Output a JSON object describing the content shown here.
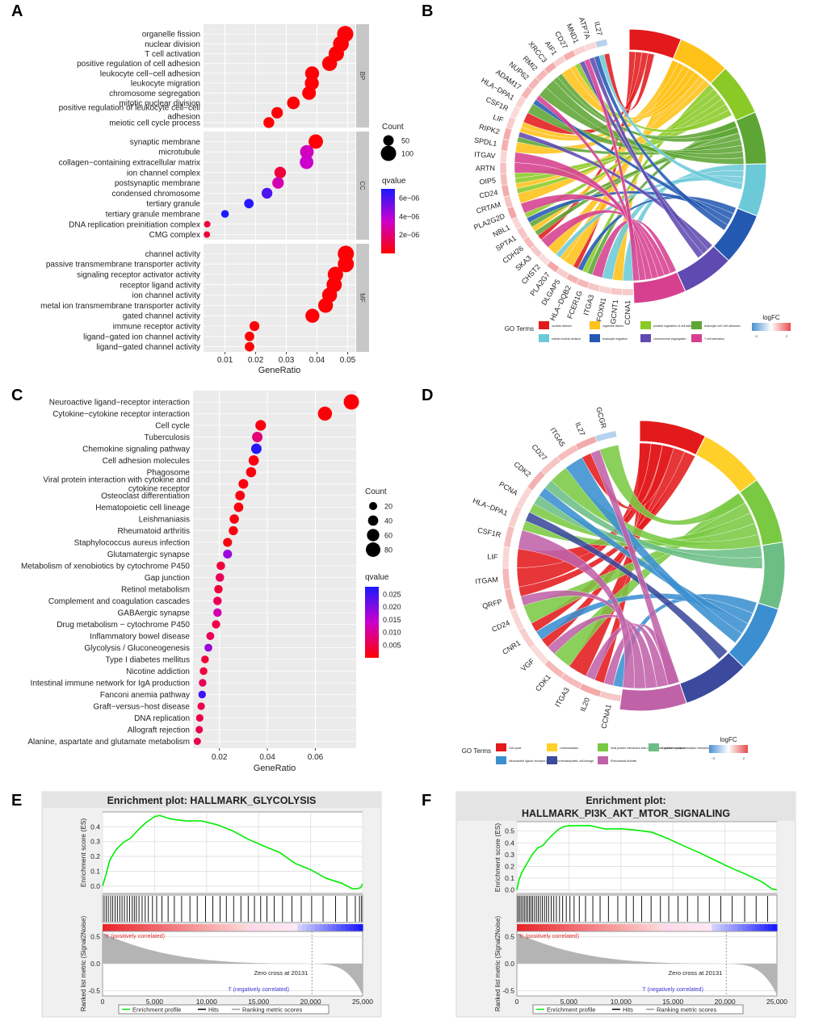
{
  "figure": {
    "panel_labels": [
      "A",
      "B",
      "C",
      "D",
      "E",
      "F"
    ],
    "colors": {
      "dot_low_q": "#ff0000",
      "dot_high_q": "#1a1aff",
      "panel_bg": "#ebebeb",
      "strip_bg": "#c7c7c7",
      "gsea_curve": "#00ee00",
      "gsea_bar": "#b4b4b4",
      "logfc_low": "#4b8fd1",
      "logfc_high": "#e64b4b"
    }
  },
  "chart_data": [
    {
      "id": "A",
      "type": "scatter",
      "subtype": "dotplot",
      "xlabel": "GeneRatio",
      "xlim": [
        0.003,
        0.0525
      ],
      "xticks": [
        0.01,
        0.02,
        0.03,
        0.04,
        0.05
      ],
      "xticklabels": [
        "0.01",
        "0.02",
        "0.03",
        "0.04",
        "0.05"
      ],
      "size_legend": {
        "title": "Count",
        "values": [
          50,
          100
        ]
      },
      "color_legend": {
        "title": "qvalue",
        "ticks": [
          2e-06,
          4e-06,
          6e-06
        ],
        "ticklabels": [
          "2e−06",
          "4e−06",
          "6e−06"
        ],
        "range": [
          0,
          7e-06
        ]
      },
      "facets": [
        {
          "name": "BP",
          "terms": [
            {
              "label": "organelle fission",
              "gr": 0.0492,
              "count": 108,
              "q": 1e-07
            },
            {
              "label": "nuclear division",
              "gr": 0.0478,
              "count": 104,
              "q": 1e-07
            },
            {
              "label": "T cell activation",
              "gr": 0.0463,
              "count": 100,
              "q": 1e-07
            },
            {
              "label": "positive regulation of cell adhesion",
              "gr": 0.0441,
              "count": 96,
              "q": 1e-07
            },
            {
              "label": "leukocyte cell−cell adhesion",
              "gr": 0.0384,
              "count": 86,
              "q": 1e-07
            },
            {
              "label": "leukocyte migration",
              "gr": 0.0383,
              "count": 86,
              "q": 1e-07
            },
            {
              "label": "chromosome segregation",
              "gr": 0.0374,
              "count": 83,
              "q": 1e-07
            },
            {
              "label": "mitotic nuclear division",
              "gr": 0.0323,
              "count": 72,
              "q": 1e-07
            },
            {
              "label": "positive regulation of leukocyte cell−cell adhesion",
              "gr": 0.027,
              "count": 60,
              "q": 1e-07
            },
            {
              "label": "meiotic cell cycle process",
              "gr": 0.0243,
              "count": 54,
              "q": 1e-07
            }
          ]
        },
        {
          "name": "CC",
          "terms": [
            {
              "label": "synaptic membrane",
              "gr": 0.0396,
              "count": 90,
              "q": 1e-07
            },
            {
              "label": "microtubule",
              "gr": 0.0367,
              "count": 83,
              "q": 3.2e-06
            },
            {
              "label": "collagen−containing extracellular matrix",
              "gr": 0.0366,
              "count": 82,
              "q": 3.5e-06
            },
            {
              "label": "ion channel complex",
              "gr": 0.028,
              "count": 62,
              "q": 1e-06
            },
            {
              "label": "postsynaptic membrane",
              "gr": 0.0273,
              "count": 61,
              "q": 3e-06
            },
            {
              "label": "condensed chromosome",
              "gr": 0.0237,
              "count": 53,
              "q": 6e-06
            },
            {
              "label": "tertiary granule",
              "gr": 0.0178,
              "count": 40,
              "q": 6.8e-06
            },
            {
              "label": "tertiary granule membrane",
              "gr": 0.01,
              "count": 22,
              "q": 7e-06
            },
            {
              "label": "DNA replication preinitiation complex",
              "gr": 0.0042,
              "count": 9,
              "q": 1e-06
            },
            {
              "label": "CMG complex",
              "gr": 0.0041,
              "count": 9,
              "q": 1e-06
            }
          ]
        },
        {
          "name": "MF",
          "terms": [
            {
              "label": "channel activity",
              "gr": 0.0494,
              "count": 108,
              "q": 1e-07
            },
            {
              "label": "passive transmembrane transporter activity",
              "gr": 0.0494,
              "count": 108,
              "q": 1e-07
            },
            {
              "label": "signaling receptor activator activity",
              "gr": 0.046,
              "count": 100,
              "q": 1e-07
            },
            {
              "label": "receptor ligand activity",
              "gr": 0.0456,
              "count": 99,
              "q": 1e-07
            },
            {
              "label": "ion channel activity",
              "gr": 0.0441,
              "count": 96,
              "q": 1e-07
            },
            {
              "label": "metal ion transmembrane transporter activity",
              "gr": 0.0428,
              "count": 94,
              "q": 1e-07
            },
            {
              "label": "gated channel activity",
              "gr": 0.0385,
              "count": 86,
              "q": 1e-07
            },
            {
              "label": "immune receptor activity",
              "gr": 0.0196,
              "count": 44,
              "q": 1e-07
            },
            {
              "label": "ligand−gated ion channel activity",
              "gr": 0.018,
              "count": 40,
              "q": 1e-07
            },
            {
              "label": "ligand−gated channel activity",
              "gr": 0.018,
              "count": 40,
              "q": 1e-07
            }
          ]
        }
      ]
    },
    {
      "id": "B",
      "type": "chord",
      "genes": [
        "CCNA1",
        "GCNT1",
        "FOXN1",
        "ITGA3",
        "FCER1G",
        "HLA−DQB2",
        "DLGAP5",
        "PLA2G7",
        "CHST2",
        "SKA3",
        "CDH26",
        "SPTA1",
        "NBL1",
        "PLA2G2D",
        "CRTAM",
        "CD24",
        "OIP5",
        "ARTN",
        "ITGAV",
        "SPDL1",
        "RIPK2",
        "LIF",
        "CSF1R",
        "HLA−DPA1",
        "ADAM17",
        "NUP62",
        "RMI2",
        "XRCC3",
        "AIF1",
        "CD27",
        "MND1",
        "ATP7A",
        "IL27"
      ],
      "terms": [
        {
          "name": "nuclear division",
          "color": "#e31a1c"
        },
        {
          "name": "organelle fission",
          "color": "#ffc219"
        },
        {
          "name": "positive regulation of cell adhesion",
          "color": "#8ac926"
        },
        {
          "name": "leukocyte cell−cell adhesion",
          "color": "#5da534"
        },
        {
          "name": "mitotic nuclear division",
          "color": "#6ccad8"
        },
        {
          "name": "leukocyte migration",
          "color": "#2459b2"
        },
        {
          "name": "chromosome segregation",
          "color": "#5e4ab0"
        },
        {
          "name": "T cell activation",
          "color": "#d6408f"
        }
      ],
      "legend_title": "GO Terms",
      "scale_title": "logFC",
      "scale_ticks": [
        "−2",
        "2"
      ]
    },
    {
      "id": "C",
      "type": "scatter",
      "subtype": "dotplot",
      "xlabel": "GeneRatio",
      "xlim": [
        0.009,
        0.077
      ],
      "xticks": [
        0.02,
        0.04,
        0.06
      ],
      "xticklabels": [
        "0.02",
        "0.04",
        "0.06"
      ],
      "size_legend": {
        "title": "Count",
        "values": [
          20,
          40,
          60,
          80
        ]
      },
      "color_legend": {
        "title": "qvalue",
        "ticks": [
          0.005,
          0.01,
          0.015,
          0.02,
          0.025
        ],
        "ticklabels": [
          "0.005",
          "0.010",
          "0.015",
          "0.020",
          "0.025"
        ],
        "range": [
          0,
          0.028
        ]
      },
      "terms": [
        {
          "label": "Neuroactive ligand−receptor interaction",
          "gr": 0.075,
          "count": 88,
          "q": 0.0005
        },
        {
          "label": "Cytokine−cytokine receptor interaction",
          "gr": 0.064,
          "count": 76,
          "q": 0.0005
        },
        {
          "label": "Cell cycle",
          "gr": 0.0372,
          "count": 44,
          "q": 0.001
        },
        {
          "label": "Tuberculosis",
          "gr": 0.0358,
          "count": 42,
          "q": 0.008
        },
        {
          "label": "Chemokine signaling pathway",
          "gr": 0.0354,
          "count": 42,
          "q": 0.027
        },
        {
          "label": "Cell adhesion molecules",
          "gr": 0.0343,
          "count": 40,
          "q": 0.001
        },
        {
          "label": "Phagosome",
          "gr": 0.0332,
          "count": 39,
          "q": 0.001
        },
        {
          "label": "Viral protein interaction with cytokine and cytokine receptor",
          "gr": 0.03,
          "count": 35,
          "q": 0.001
        },
        {
          "label": "Osteoclast differentiation",
          "gr": 0.0286,
          "count": 34,
          "q": 0.001
        },
        {
          "label": "Hematopoietic cell lineage",
          "gr": 0.028,
          "count": 33,
          "q": 0.001
        },
        {
          "label": "Leishmaniasis",
          "gr": 0.0262,
          "count": 31,
          "q": 0.001
        },
        {
          "label": "Rheumatoid arthritis",
          "gr": 0.0258,
          "count": 30,
          "q": 0.001
        },
        {
          "label": "Staphylococcus aureus infection",
          "gr": 0.0234,
          "count": 28,
          "q": 0.001
        },
        {
          "label": "Glutamatergic synapse",
          "gr": 0.0234,
          "count": 28,
          "q": 0.018
        },
        {
          "label": "Metabolism of xenobiotics by cytochrome P450",
          "gr": 0.0206,
          "count": 24,
          "q": 0.004
        },
        {
          "label": "Gap junction",
          "gr": 0.0202,
          "count": 24,
          "q": 0.006
        },
        {
          "label": "Retinol metabolism",
          "gr": 0.0196,
          "count": 23,
          "q": 0.004
        },
        {
          "label": "Complement and coagulation cascades",
          "gr": 0.0192,
          "count": 23,
          "q": 0.006
        },
        {
          "label": "GABAergic synapse",
          "gr": 0.0192,
          "count": 23,
          "q": 0.012
        },
        {
          "label": "Drug metabolism − cytochrome P450",
          "gr": 0.0186,
          "count": 22,
          "q": 0.005
        },
        {
          "label": "Inflammatory bowel disease",
          "gr": 0.0162,
          "count": 19,
          "q": 0.006
        },
        {
          "label": "Glycolysis / Gluconeogenesis",
          "gr": 0.0154,
          "count": 18,
          "q": 0.018
        },
        {
          "label": "Type I diabetes mellitus",
          "gr": 0.014,
          "count": 16,
          "q": 0.004
        },
        {
          "label": "Nicotine addiction",
          "gr": 0.0134,
          "count": 16,
          "q": 0.004
        },
        {
          "label": "Intestinal immune network for IgA production",
          "gr": 0.013,
          "count": 15,
          "q": 0.006
        },
        {
          "label": "Fanconi anemia pathway",
          "gr": 0.0128,
          "count": 15,
          "q": 0.025
        },
        {
          "label": "Graft−versus−host disease",
          "gr": 0.0124,
          "count": 14,
          "q": 0.005
        },
        {
          "label": "DNA replication",
          "gr": 0.0118,
          "count": 14,
          "q": 0.005
        },
        {
          "label": "Allograft rejection",
          "gr": 0.0116,
          "count": 13,
          "q": 0.005
        },
        {
          "label": "Alanine, aspartate and glutamate metabolism",
          "gr": 0.0108,
          "count": 12,
          "q": 0.005
        }
      ]
    },
    {
      "id": "D",
      "type": "chord",
      "genes": [
        "CCNA1",
        "IL20",
        "ITGA3",
        "CDK1",
        "VGF",
        "CNR1",
        "CD24",
        "QRFP",
        "ITGAM",
        "LIF",
        "CSF1R",
        "HLA−DPA1",
        "PCNA",
        "CDK2",
        "CD27",
        "ITGA5",
        "IL27",
        "GCGR"
      ],
      "terms": [
        {
          "name": "Cell cycle",
          "color": "#e31a1c"
        },
        {
          "name": "Leishmaniasis",
          "color": "#ffd02a"
        },
        {
          "name": "Viral protein interaction with cytokine and cytokine receptor",
          "color": "#7ac943"
        },
        {
          "name": "Cytokine−cytokine receptor interaction",
          "color": "#6cbe85"
        },
        {
          "name": "Neuroactive ligand−receptor interaction",
          "color": "#3b8fd0"
        },
        {
          "name": "Hematopoietic cell lineage",
          "color": "#3b4a9c"
        },
        {
          "name": "Rheumatoid arthritis",
          "color": "#c062a8"
        }
      ],
      "legend_title": "GO Terms",
      "scale_title": "logFC",
      "scale_ticks": [
        "−2",
        "2"
      ]
    },
    {
      "id": "E",
      "type": "line",
      "subtype": "gsea",
      "title": "Enrichment plot: HALLMARK_GLYCOLYSIS",
      "ylabel_top": "Enrichment score (ES)",
      "ylabel_bottom": "Ranked list metric (Signal2Noise)",
      "xlabel": "Rank in Ordered Dataset",
      "xlim": [
        0,
        25000
      ],
      "ylim_top": [
        -0.05,
        0.5
      ],
      "ylim_bottom": [
        -0.6,
        0.6
      ],
      "yticks_top": [
        0.0,
        0.1,
        0.2,
        0.3,
        0.4
      ],
      "yticks_bottom": [
        -0.5,
        0.0,
        0.5
      ],
      "xticks": [
        0,
        5000,
        10000,
        15000,
        20000,
        25000
      ],
      "xticklabels": [
        "0",
        "5,000",
        "10,000",
        "15,000",
        "20,000",
        "25,000"
      ],
      "es_x": [
        0,
        300,
        700,
        1300,
        2000,
        2700,
        3400,
        4200,
        5000,
        5500,
        6500,
        8000,
        9500,
        11000,
        12500,
        14000,
        15500,
        17000,
        18500,
        20000,
        21500,
        23000,
        24000,
        24400,
        24800,
        25000
      ],
      "es_y": [
        0.0,
        0.08,
        0.18,
        0.25,
        0.3,
        0.32,
        0.38,
        0.43,
        0.46,
        0.47,
        0.46,
        0.44,
        0.43,
        0.41,
        0.37,
        0.32,
        0.27,
        0.22,
        0.16,
        0.1,
        0.05,
        0.01,
        -0.02,
        -0.015,
        -0.005,
        0.015
      ],
      "hits": [
        150,
        350,
        550,
        780,
        980,
        1200,
        1420,
        1650,
        1870,
        2100,
        2350,
        2600,
        2850,
        3050,
        3250,
        3500,
        3800,
        4100,
        4400,
        4800,
        5200,
        5700,
        6300,
        6900,
        7600,
        8400,
        9100,
        9900,
        10600,
        11300,
        11900,
        12600,
        13300,
        14000,
        14600,
        15200,
        15800,
        16500,
        17300,
        18200,
        19100,
        20100,
        21200,
        22400,
        23500,
        24300,
        24700,
        24900
      ],
      "pos_label": "'h' (positively correlated)",
      "neg_label": "'l' (negatively correlated)",
      "zero_cross": "Zero cross at 20131",
      "zero_cross_rank": 20131,
      "legend": [
        "Enrichment profile",
        "Hits",
        "Ranking metric scores"
      ]
    },
    {
      "id": "F",
      "type": "line",
      "subtype": "gsea",
      "title_line1": "Enrichment plot:",
      "title_line2": "HALLMARK_PI3K_AKT_MTOR_SIGNALING",
      "ylabel_top": "Enrichment score (ES)",
      "ylabel_bottom": "Ranked list metric (Signal2Noise)",
      "xlabel": "Rank in Ordered Dataset",
      "xlim": [
        0,
        25000
      ],
      "ylim_top": [
        -0.03,
        0.58
      ],
      "ylim_bottom": [
        -0.6,
        0.6
      ],
      "yticks_top": [
        0.0,
        0.1,
        0.2,
        0.3,
        0.4,
        0.5
      ],
      "yticks_bottom": [
        -0.5,
        0.0,
        0.5
      ],
      "xticks": [
        0,
        5000,
        10000,
        15000,
        20000,
        25000
      ],
      "xticklabels": [
        "0",
        "5,000",
        "10,000",
        "15,000",
        "20,000",
        "25,000"
      ],
      "es_x": [
        0,
        200,
        500,
        1000,
        1500,
        2000,
        2500,
        3000,
        3500,
        4000,
        4500,
        5000,
        5500,
        7000,
        8500,
        10000,
        11500,
        13000,
        14500,
        16000,
        17500,
        19000,
        20500,
        22000,
        23500,
        24500,
        25000
      ],
      "es_y": [
        0.0,
        0.08,
        0.15,
        0.22,
        0.3,
        0.35,
        0.38,
        0.42,
        0.47,
        0.51,
        0.53,
        0.54,
        0.55,
        0.54,
        0.52,
        0.52,
        0.51,
        0.48,
        0.43,
        0.37,
        0.31,
        0.25,
        0.19,
        0.13,
        0.07,
        0.02,
        0.0
      ],
      "hits": [
        100,
        250,
        400,
        560,
        720,
        880,
        1040,
        1200,
        1360,
        1520,
        1700,
        1880,
        2060,
        2250,
        2450,
        2650,
        2850,
        3050,
        3300,
        3550,
        3800,
        4100,
        4400,
        4750,
        5100,
        5500,
        6000,
        6600,
        7300,
        8000,
        8800,
        9700,
        10500,
        11200,
        12000,
        12900,
        13800,
        14600,
        15500,
        16400,
        17400,
        18500,
        19600,
        20700,
        21900,
        23000,
        24100
      ],
      "pos_label": "'h' (positively correlated)",
      "neg_label": "'l' (negatively correlated)",
      "zero_cross": "Zero cross at 20131",
      "zero_cross_rank": 20131,
      "legend": [
        "Enrichment profile",
        "Hits",
        "Ranking metric scores"
      ]
    }
  ]
}
